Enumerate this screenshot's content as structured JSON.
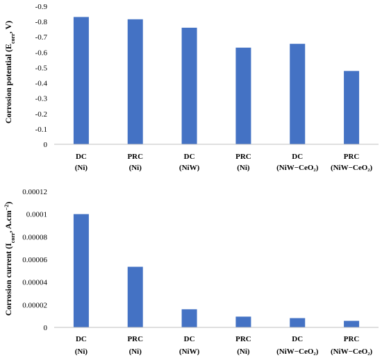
{
  "chart_data": [
    {
      "type": "bar",
      "categories": [
        {
          "line1": "DC",
          "line2": "(Ni)"
        },
        {
          "line1": "PRC",
          "line2": "(Ni)"
        },
        {
          "line1": "DC",
          "line2": "(NiW)"
        },
        {
          "line1": "PRC",
          "line2": "(Ni)"
        },
        {
          "line1": "DC",
          "line2": "(NiW−CeO₂)"
        },
        {
          "line1": "PRC",
          "line2": "(NiW−CeO₂)"
        }
      ],
      "values": [
        -0.83,
        -0.815,
        -0.76,
        -0.63,
        -0.655,
        -0.478
      ],
      "ylabel": "Corrosion potential (Ecorr, V)",
      "ylabel_parts": [
        "Corrosion potential (E",
        "corr",
        ", V)"
      ],
      "ylim": [
        0,
        -0.9
      ],
      "yticks": [
        0,
        -0.1,
        -0.2,
        -0.3,
        -0.4,
        -0.5,
        -0.6,
        -0.7,
        -0.8,
        -0.9
      ],
      "ytick_labels": [
        "0",
        "-0.1",
        "-0.2",
        "-0.3",
        "-0.4",
        "-0.5",
        "-0.6",
        "-0.7",
        "-0.8",
        "-0.9"
      ],
      "grid": false,
      "bar_color": "#4472c4"
    },
    {
      "type": "bar",
      "categories": [
        {
          "line1": "DC",
          "line2": "(Ni)"
        },
        {
          "line1": "PRC",
          "line2": "(Ni)"
        },
        {
          "line1": "DC",
          "line2": "(NiW)"
        },
        {
          "line1": "PRC",
          "line2": "(Ni)"
        },
        {
          "line1": "DC",
          "line2": "(NiW−CeO₂)"
        },
        {
          "line1": "PRC",
          "line2": "(NiW−CeO₂)"
        }
      ],
      "values": [
        0.0001,
        5.35e-05,
        1.6e-05,
        9.5e-06,
        8.2e-06,
        5.8e-06
      ],
      "ylabel": "Corrosion current (Icorr, A.cm−2)",
      "ylabel_parts": [
        "Corrosion current (I",
        "corr",
        ", A.cm",
        "−2",
        ")"
      ],
      "ylim": [
        0,
        0.00012
      ],
      "yticks": [
        0,
        2e-05,
        4e-05,
        6e-05,
        8e-05,
        0.0001,
        0.00012
      ],
      "ytick_labels": [
        "0",
        "0.00002",
        "0.00004",
        "0.00006",
        "0.00008",
        "0.0001",
        "0.00012"
      ],
      "grid": false,
      "bar_color": "#4472c4"
    }
  ]
}
